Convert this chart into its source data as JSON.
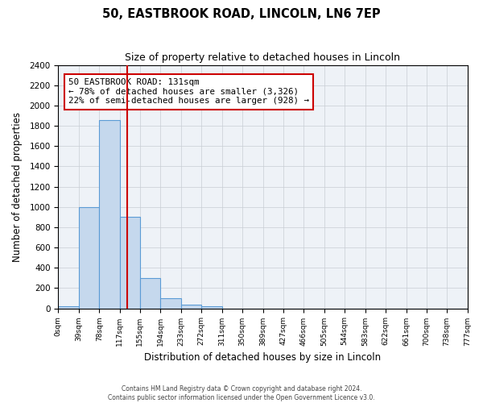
{
  "title": "50, EASTBROOK ROAD, LINCOLN, LN6 7EP",
  "subtitle": "Size of property relative to detached houses in Lincoln",
  "xlabel": "Distribution of detached houses by size in Lincoln",
  "ylabel": "Number of detached properties",
  "bar_values": [
    20,
    1000,
    1860,
    900,
    300,
    100,
    40,
    20,
    0,
    0,
    0,
    0,
    0,
    0,
    0,
    0,
    0,
    0,
    0,
    0
  ],
  "bin_edges": [
    0,
    39,
    78,
    117,
    155,
    194,
    233,
    272,
    311,
    350,
    389,
    427,
    466,
    505,
    544,
    583,
    622,
    661,
    700,
    738,
    777
  ],
  "tick_labels": [
    "0sqm",
    "39sqm",
    "78sqm",
    "117sqm",
    "155sqm",
    "194sqm",
    "233sqm",
    "272sqm",
    "311sqm",
    "350sqm",
    "389sqm",
    "427sqm",
    "466sqm",
    "505sqm",
    "544sqm",
    "583sqm",
    "622sqm",
    "661sqm",
    "700sqm",
    "738sqm",
    "777sqm"
  ],
  "bar_color": "#c5d8ed",
  "bar_edge_color": "#5b9bd5",
  "property_line_x": 131,
  "property_line_color": "#cc0000",
  "ylim": [
    0,
    2400
  ],
  "yticks": [
    0,
    200,
    400,
    600,
    800,
    1000,
    1200,
    1400,
    1600,
    1800,
    2000,
    2200,
    2400
  ],
  "annotation_title": "50 EASTBROOK ROAD: 131sqm",
  "annotation_line1": "← 78% of detached houses are smaller (3,326)",
  "annotation_line2": "22% of semi-detached houses are larger (928) →",
  "annotation_box_color": "#ffffff",
  "annotation_box_edge": "#cc0000",
  "footer_line1": "Contains HM Land Registry data © Crown copyright and database right 2024.",
  "footer_line2": "Contains public sector information licensed under the Open Government Licence v3.0.",
  "background_color": "#ffffff",
  "axes_bg_color": "#eef2f7",
  "grid_color": "#c8cdd4"
}
